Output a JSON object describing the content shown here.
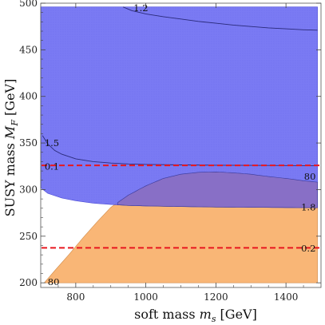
{
  "chart_data": {
    "type": "area",
    "xlabel": "soft mass m_s [GeV]",
    "ylabel": "SUSY mass M_F [GeV]",
    "xlabel_parts": [
      "soft mass ",
      "m",
      "s",
      " [GeV]"
    ],
    "ylabel_parts": [
      "SUSY mass ",
      "M",
      "F",
      " [GeV]"
    ],
    "xlim": [
      700,
      1500
    ],
    "ylim": [
      195,
      500
    ],
    "xticks": [
      800,
      1000,
      1200,
      1400
    ],
    "yticks": [
      200,
      250,
      300,
      350,
      400,
      450,
      500
    ],
    "grid": false,
    "colors": {
      "blue_region": "#6b6bf2",
      "orange_region": "#f9b676",
      "overlap_region": "#8a6fc3",
      "contour": "#2a2a7a",
      "dashed": "#e8171f"
    },
    "regions": [
      {
        "id": "blue",
        "upper": {
          "x": [
            700,
            1490
          ],
          "y": [
            496,
            496
          ]
        },
        "lower": {
          "x": [
            700,
            720,
            760,
            800,
            850,
            900,
            950,
            1000,
            1100,
            1200,
            1300,
            1400,
            1490
          ],
          "y": [
            302,
            296,
            291,
            288,
            285.5,
            284,
            283,
            282.5,
            281.8,
            281.3,
            281,
            280.8,
            280.5
          ]
        }
      },
      {
        "id": "orange",
        "upper": {
          "x": [
            710,
            740,
            780,
            820,
            860,
            900,
            950,
            1000,
            1050,
            1100,
            1150,
            1200,
            1250,
            1300,
            1350,
            1400,
            1450,
            1490
          ],
          "y": [
            200,
            213,
            230,
            248,
            265,
            281,
            294,
            304,
            312,
            316.5,
            318.5,
            319,
            318,
            316.5,
            314,
            312,
            309.5,
            308
          ]
        },
        "lower": {
          "x": [
            710,
            1490
          ],
          "y": [
            200,
            200
          ]
        }
      }
    ],
    "contours": [
      {
        "label": "1.2",
        "x": [
          935,
          960,
          1000,
          1050,
          1100,
          1150,
          1200,
          1250,
          1300,
          1350,
          1400,
          1450,
          1490
        ],
        "y": [
          496,
          492,
          488.5,
          485.5,
          483,
          480.5,
          478.5,
          476.5,
          475,
          473.5,
          472.5,
          471.5,
          471
        ]
      },
      {
        "label": "1.5",
        "x": [
          705,
          720,
          740,
          760,
          800,
          850,
          900,
          950,
          1000,
          1100,
          1200,
          1300,
          1400,
          1490
        ],
        "y": [
          358,
          349,
          342,
          338,
          333,
          330,
          328.5,
          327.5,
          327,
          326.5,
          326.2,
          326,
          325.8,
          325.6
        ]
      }
    ],
    "dashed_lines": [
      {
        "y": 326,
        "label_left": "0.1",
        "label_right": "80"
      },
      {
        "y": 237.5,
        "label_right": "0.2"
      }
    ],
    "labels": [
      {
        "text": "1.2",
        "x": 965,
        "y": 495
      },
      {
        "text": "1.5",
        "x": 711,
        "y": 350
      },
      {
        "text": "0.1",
        "x": 711,
        "y": 325
      },
      {
        "text": "80",
        "x": 1485,
        "y": 314
      },
      {
        "text": "1.8",
        "x": 1485,
        "y": 281
      },
      {
        "text": "0.2",
        "x": 1485,
        "y": 237
      },
      {
        "text": "80",
        "x": 720,
        "y": 201
      }
    ]
  }
}
